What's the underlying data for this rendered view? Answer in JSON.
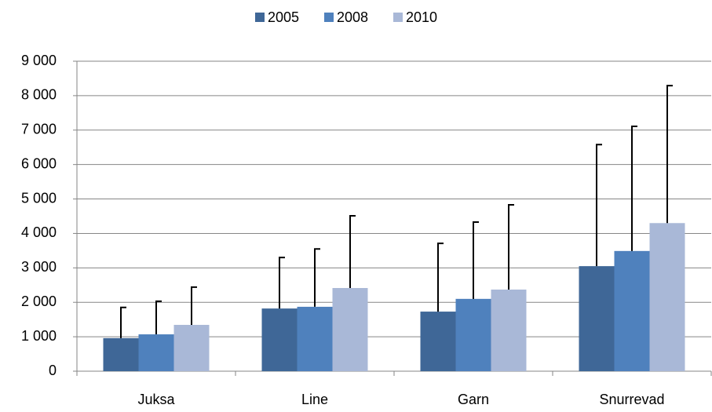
{
  "chart_data": {
    "type": "bar",
    "categories": [
      "Juksa",
      "Line",
      "Garn",
      "Snurrevad"
    ],
    "series": [
      {
        "name": "2005",
        "color": "#3f6797",
        "values": [
          960,
          1820,
          1730,
          3050
        ],
        "errors": [
          890,
          1480,
          1980,
          3530
        ]
      },
      {
        "name": "2008",
        "color": "#4f81bd",
        "values": [
          1070,
          1870,
          2100,
          3490
        ],
        "errors": [
          960,
          1680,
          2230,
          3620
        ]
      },
      {
        "name": "2010",
        "color": "#a9b8d7",
        "values": [
          1345,
          2415,
          2370,
          4300
        ],
        "errors": [
          1095,
          2095,
          2460,
          3990
        ]
      }
    ],
    "ylim": [
      0,
      9000
    ],
    "yticks": [
      0,
      {
        "value": 1000,
        "label": "1 000"
      },
      {
        "value": 2000,
        "label": "2 000"
      },
      {
        "value": 3000,
        "label": "3 000"
      },
      {
        "value": 4000,
        "label": "4 000"
      },
      {
        "value": 5000,
        "label": "5 000"
      },
      {
        "value": 6000,
        "label": "6 000"
      },
      {
        "value": 7000,
        "label": "7 000"
      },
      {
        "value": 8000,
        "label": "8 000"
      },
      {
        "value": 9000,
        "label": "9 000"
      }
    ],
    "grid": true,
    "legend": "top"
  }
}
